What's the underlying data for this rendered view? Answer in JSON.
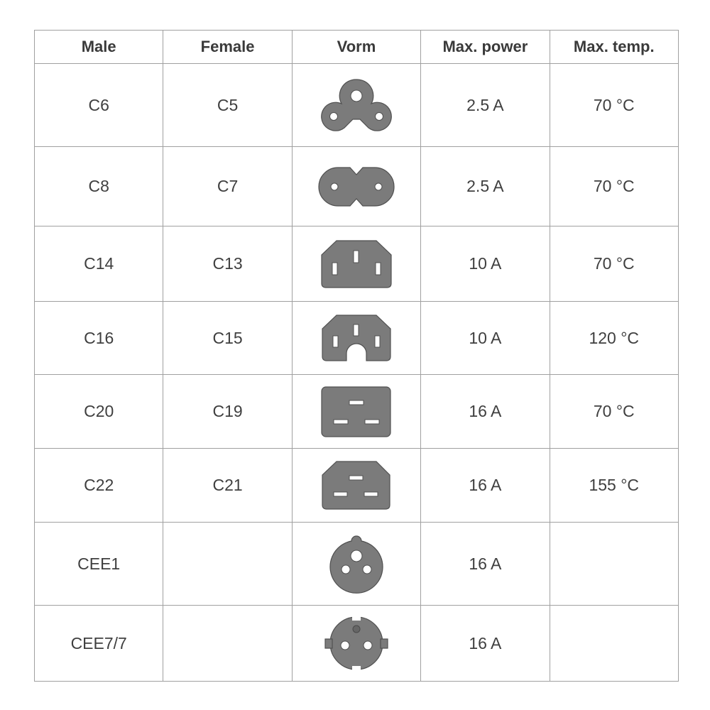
{
  "headers": {
    "male": "Male",
    "female": "Female",
    "shape": "Vorm",
    "max_power": "Max. power",
    "max_temp": "Max. temp."
  },
  "colors": {
    "connector_fill": "#7b7b7b",
    "border": "#a0a0a0",
    "text": "#3f3f3f"
  },
  "rows": [
    {
      "male": "C6",
      "female": "C5",
      "icon": "c5-cloverleaf-connector-icon",
      "power": "2.5 A",
      "temp": "70 °C"
    },
    {
      "male": "C8",
      "female": "C7",
      "icon": "c7-figure-eight-connector-icon",
      "power": "2.5 A",
      "temp": "70 °C"
    },
    {
      "male": "C14",
      "female": "C13",
      "icon": "c13-connector-icon",
      "power": "10 A",
      "temp": "70 °C"
    },
    {
      "male": "C16",
      "female": "C15",
      "icon": "c15-connector-icon",
      "power": "10 A",
      "temp": "120 °C"
    },
    {
      "male": "C20",
      "female": "C19",
      "icon": "c19-connector-icon",
      "power": "16 A",
      "temp": "70 °C"
    },
    {
      "male": "C22",
      "female": "C21",
      "icon": "c21-connector-icon",
      "power": "16 A",
      "temp": "155 °C"
    },
    {
      "male": "CEE1",
      "female": "",
      "icon": "cee1-connector-icon",
      "power": "16 A",
      "temp": ""
    },
    {
      "male": "CEE7/7",
      "female": "",
      "icon": "cee7-7-schuko-connector-icon",
      "power": "16 A",
      "temp": ""
    }
  ]
}
